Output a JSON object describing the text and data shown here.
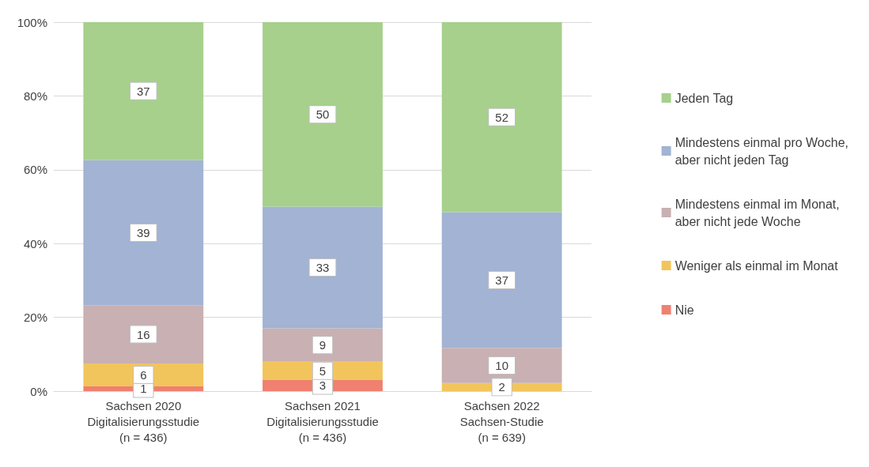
{
  "chart_data": {
    "type": "bar",
    "stacked": true,
    "categories": [
      "Sachsen 2020\nDigitalisierungsstudie\n(n = 436)",
      "Sachsen 2021\nDigitalisierungsstudie\n(n = 436)",
      "Sachsen 2022\nSachsen-Studie\n(n = 639)"
    ],
    "series": [
      {
        "name": "Nie",
        "color": "#f08070",
        "values": [
          1.3,
          3,
          null
        ],
        "value_labels": [
          "1",
          "3",
          null
        ]
      },
      {
        "name": "Weniger als einmal im Monat",
        "color": "#f2c55c",
        "values": [
          6.2,
          5,
          2.2
        ],
        "value_labels": [
          "6",
          "5",
          "2"
        ]
      },
      {
        "name": "Mindestens einmal im Monat,\naber nicht jede Woche",
        "color": "#c9b0b2",
        "values": [
          15.8,
          9,
          9.5
        ],
        "value_labels": [
          "16",
          "9",
          "10"
        ]
      },
      {
        "name": "Mindestens einmal pro Woche,\naber nicht jeden Tag",
        "color": "#a2b3d4",
        "values": [
          39.3,
          33,
          36.8
        ],
        "value_labels": [
          "39",
          "33",
          "37"
        ]
      },
      {
        "name": "Jeden Tag",
        "color": "#a6d08c",
        "values": [
          37.4,
          50,
          51.5
        ],
        "value_labels": [
          "37",
          "50",
          "52"
        ]
      }
    ],
    "ylim": [
      0,
      100
    ],
    "yticks": [
      {
        "value": 0,
        "label": "0%"
      },
      {
        "value": 20,
        "label": "20%"
      },
      {
        "value": 40,
        "label": "40%"
      },
      {
        "value": 60,
        "label": "60%"
      },
      {
        "value": 80,
        "label": "80%"
      },
      {
        "value": 100,
        "label": "100%"
      }
    ],
    "grid": "y",
    "legend": "right"
  }
}
